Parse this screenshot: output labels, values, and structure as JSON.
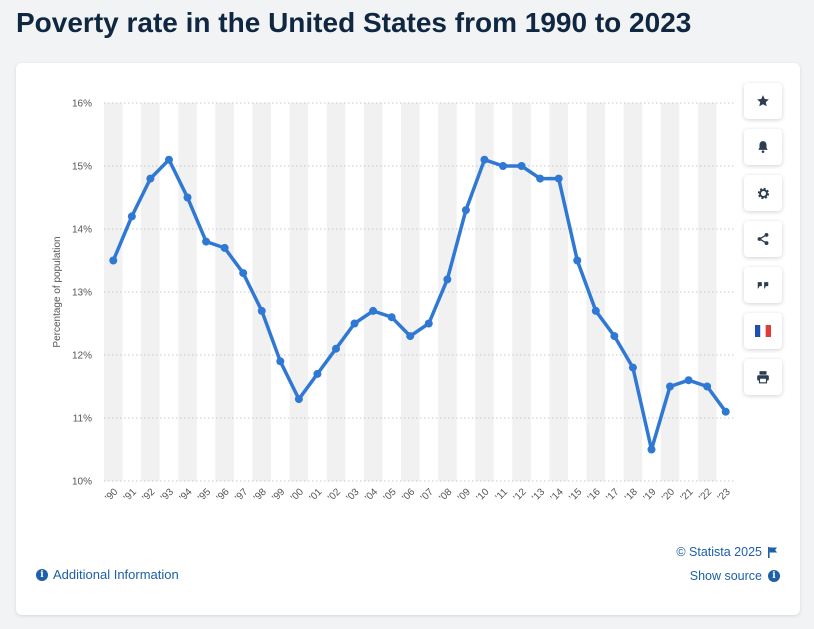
{
  "page": {
    "title": "Poverty rate in the United States from 1990 to 2023"
  },
  "toolbar": {
    "buttons": [
      {
        "name": "favorite",
        "icon": "star-icon"
      },
      {
        "name": "notification",
        "icon": "bell-icon"
      },
      {
        "name": "settings",
        "icon": "gear-icon"
      },
      {
        "name": "share",
        "icon": "share-icon"
      },
      {
        "name": "cite",
        "icon": "quote-icon"
      },
      {
        "name": "language",
        "icon": "french-flag-icon"
      },
      {
        "name": "print",
        "icon": "print-icon"
      }
    ]
  },
  "footer": {
    "additional_info": "Additional Information",
    "copyright": "© Statista 2025",
    "show_source": "Show source"
  },
  "colors": {
    "line": "#2f78d4",
    "band": "#f1f1f1",
    "grid": "#c8c8c8",
    "link": "#1d5fa8"
  },
  "chart_data": {
    "type": "line",
    "title": "Poverty rate in the United States from 1990 to 2023",
    "xlabel": "",
    "ylabel": "Percentage of population",
    "ylim": [
      10,
      16
    ],
    "yticks": [
      "10%",
      "11%",
      "12%",
      "13%",
      "14%",
      "15%",
      "16%"
    ],
    "categories": [
      "'90",
      "'91",
      "'92",
      "'93",
      "'94",
      "'95",
      "'96",
      "'97",
      "'98",
      "'99",
      "'00",
      "'01",
      "'02",
      "'03",
      "'04",
      "'05",
      "'06",
      "'07",
      "'08",
      "'09",
      "'10",
      "'11",
      "'12",
      "'13",
      "'14",
      "'15",
      "'16",
      "'17",
      "'18",
      "'19",
      "'20",
      "'21",
      "'22",
      "'23"
    ],
    "series": [
      {
        "name": "Poverty rate",
        "values": [
          13.5,
          14.2,
          14.8,
          15.1,
          14.5,
          13.8,
          13.7,
          13.3,
          12.7,
          11.9,
          11.3,
          11.7,
          12.1,
          12.5,
          12.7,
          12.6,
          12.3,
          12.5,
          13.2,
          14.3,
          15.1,
          15.0,
          15.0,
          14.8,
          14.8,
          13.5,
          12.7,
          12.3,
          11.8,
          10.5,
          11.5,
          11.6,
          11.5,
          11.1
        ]
      }
    ],
    "grid": true
  }
}
